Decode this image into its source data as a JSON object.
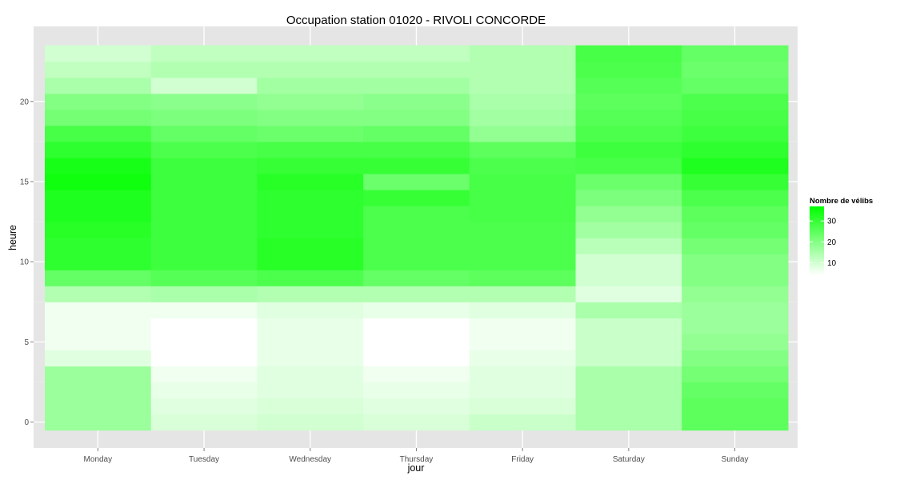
{
  "chart_data": {
    "type": "heatmap",
    "title": "Occupation station 01020 - RIVOLI CONCORDE",
    "xlabel": "jour",
    "ylabel": "heure",
    "x_categories": [
      "Monday",
      "Tuesday",
      "Wednesday",
      "Thursday",
      "Friday",
      "Saturday",
      "Sunday"
    ],
    "y_hours": [
      0,
      1,
      2,
      3,
      4,
      5,
      6,
      7,
      8,
      9,
      10,
      11,
      12,
      13,
      14,
      15,
      16,
      17,
      18,
      19,
      20,
      21,
      22,
      23
    ],
    "y_ticks": [
      0,
      5,
      10,
      15,
      20
    ],
    "ylim": [
      -0.5,
      23.5
    ],
    "grid": true,
    "legend": {
      "title": "Nombre de vélibs",
      "ticks": [
        10,
        20,
        30
      ],
      "range": [
        4,
        37
      ],
      "low_color": "#ffffff",
      "high_color": "#00ff00",
      "position": "right"
    },
    "background_color": "#e5e5e5",
    "grid_color": "#ffffff",
    "values": {
      "Monday": [
        17,
        17,
        17,
        17,
        8,
        6,
        6,
        6,
        14,
        24,
        31,
        31,
        32,
        33,
        33,
        35,
        34,
        31,
        28,
        22,
        20,
        15,
        12,
        10
      ],
      "Tuesday": [
        9,
        8,
        7,
        6,
        4,
        4,
        4,
        6,
        15,
        26,
        29,
        29,
        29,
        29,
        29,
        29,
        29,
        27,
        24,
        21,
        19,
        10,
        14,
        12
      ],
      "Wednesday": [
        10,
        9,
        8,
        8,
        7,
        7,
        7,
        8,
        14,
        27,
        32,
        32,
        31,
        31,
        31,
        32,
        30,
        28,
        23,
        20,
        18,
        16,
        14,
        12
      ],
      "Thursday": [
        9,
        8,
        7,
        6,
        4,
        4,
        4,
        7,
        14,
        24,
        27,
        27,
        27,
        27,
        30,
        23,
        30,
        28,
        24,
        20,
        19,
        16,
        14,
        12
      ],
      "Friday": [
        11,
        9,
        8,
        8,
        7,
        6,
        6,
        8,
        14,
        25,
        27,
        27,
        27,
        28,
        28,
        28,
        27,
        25,
        18,
        16,
        15,
        14,
        14,
        14
      ],
      "Saturday": [
        15,
        15,
        15,
        15,
        11,
        11,
        11,
        15,
        8,
        10,
        10,
        13,
        16,
        18,
        21,
        23,
        28,
        29,
        27,
        26,
        25,
        26,
        27,
        28
      ],
      "Sunday": [
        25,
        25,
        24,
        22,
        20,
        18,
        17,
        17,
        18,
        20,
        20,
        22,
        24,
        25,
        27,
        30,
        33,
        31,
        29,
        28,
        27,
        24,
        23,
        24
      ]
    }
  }
}
